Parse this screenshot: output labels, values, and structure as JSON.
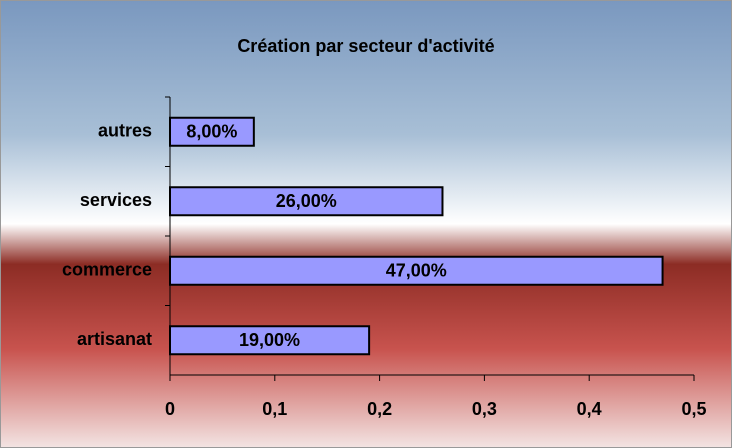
{
  "chart_data": {
    "type": "hbar",
    "title": "Création par secteur d'activité",
    "categories": [
      "autres",
      "services",
      "commerce",
      "artisanat"
    ],
    "values": [
      0.08,
      0.26,
      0.47,
      0.19
    ],
    "value_labels": [
      "8,00%",
      "26,00%",
      "47,00%",
      "19,00%"
    ],
    "color": "#9999ff",
    "xlim": [
      0,
      0.5
    ],
    "xticks": [
      0,
      {
        "value": 0.1,
        "label": "0,1"
      },
      {
        "value": 0.2,
        "label": "0,2"
      },
      {
        "value": 0.3,
        "label": "0,3"
      },
      {
        "value": 0.4,
        "label": "0,4"
      },
      {
        "value": 0.5,
        "label": "0,5"
      }
    ]
  }
}
